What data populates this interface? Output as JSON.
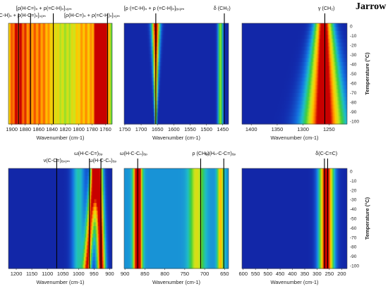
{
  "figure": {
    "title": "Jarrow",
    "temp_axis_label": "Temperature (°C)",
    "temp_ticks": [
      0,
      -10,
      -20,
      -30,
      -40,
      -50,
      -60,
      -70,
      -80,
      -90,
      -100
    ]
  },
  "chart_data": [
    {
      "type": "heatmap",
      "panel": "top-1",
      "xlabel": "Wavenumber (cm-1)",
      "xlim": [
        1905,
        1750
      ],
      "ylim": [
        0,
        -100
      ],
      "x_ticks": [
        1900,
        1880,
        1860,
        1840,
        1820,
        1800,
        1780,
        1760
      ],
      "bands": [
        {
          "center": 1765,
          "width": 10,
          "intensity": 0.85
        },
        {
          "center": 1790,
          "width": 22,
          "intensity": 0.35
        },
        {
          "center": 1860,
          "width": 40,
          "intensity": 0.42
        },
        {
          "center": 1895,
          "width": 16,
          "intensity": 0.3
        }
      ],
      "markers": [
        1890,
        1872,
        1838,
        1757
      ],
      "annotations": [
        {
          "text": "[(ρ(=C-H)ₙ + ρ(H-C=)ₙ]ₛᵧₘ",
          "x": 1892,
          "level": 2
        },
        {
          "text": "[ρ(H-C=)ₙ + ρ(=C-H)ₙ]ₛᵧₘ",
          "x": 1852,
          "level": 1
        },
        {
          "text": "[ρ(H-C=)ₙ + ρ(=C-H)ₙ]ₛᵧₘ",
          "x": 1780,
          "level": 2
        }
      ]
    },
    {
      "type": "heatmap",
      "panel": "top-2",
      "xlabel": "Wavenumber (cm-1)",
      "xlim": [
        1752,
        1432
      ],
      "ylim": [
        0,
        -100
      ],
      "x_ticks": [
        1750,
        1700,
        1650,
        1600,
        1550,
        1500,
        1450
      ],
      "bands": [
        {
          "center": 1655,
          "width": 8,
          "intensity": 1.0,
          "taper": true
        },
        {
          "center": 1457,
          "width": 8,
          "intensity": 0.55
        }
      ],
      "markers": [
        1655,
        1445
      ],
      "annotations": [
        {
          "text": "[ρ (=C-H)ₙ + ρ (=C-H)ₙ]ₐₛᵧₘ",
          "x": 1660,
          "level": 1
        },
        {
          "text": "δ (CH₂)",
          "x": 1452,
          "level": 1
        }
      ]
    },
    {
      "type": "heatmap",
      "panel": "top-3",
      "xlabel": "Wavenumber (cm-1)",
      "xlim": [
        1418,
        1215
      ],
      "ylim": [
        0,
        -100
      ],
      "x_ticks": [
        1400,
        1350,
        1300,
        1250
      ],
      "bands": [
        {
          "center": 1260,
          "width": 25,
          "intensity": 1.0,
          "widen": true
        }
      ],
      "markers": [
        1258
      ],
      "annotations": [
        {
          "text": "γ (CH₂)",
          "x": 1255,
          "level": 1
        }
      ]
    },
    {
      "type": "heatmap",
      "panel": "bottom-1",
      "xlabel": "Wavenumber (cm-1)",
      "xlim": [
        1225,
        892
      ],
      "ylim": [
        0,
        -100
      ],
      "x_ticks": [
        1200,
        1150,
        1100,
        1050,
        1000,
        950,
        900
      ],
      "bands": [
        {
          "center": 940,
          "width": 26,
          "intensity": 1.0,
          "split": true
        },
        {
          "center": 1000,
          "width": 22,
          "intensity": 0.35
        }
      ],
      "markers": [
        1070,
        965,
        928
      ],
      "annotations": [
        {
          "text": "ν(C-C=)ₐₛᵧₘ",
          "x": 1070,
          "level": 2
        },
        {
          "text": "ω(H-C-C=)ₒₚ",
          "x": 968,
          "level": 1
        },
        {
          "text": "ω(H-C-Cₙ)ₒₚ",
          "x": 922,
          "level": 2
        }
      ]
    },
    {
      "type": "heatmap",
      "panel": "bottom-2",
      "xlabel": "Wavenumber (cm-1)",
      "xlim": [
        902,
        640
      ],
      "ylim": [
        0,
        -100
      ],
      "x_ticks": [
        900,
        850,
        800,
        750,
        700,
        650
      ],
      "bands": [
        {
          "center": 868,
          "width": 10,
          "intensity": 1.0
        },
        {
          "center": 720,
          "width": 18,
          "intensity": 0.4
        },
        {
          "center": 660,
          "width": 8,
          "intensity": 0.5
        }
      ],
      "markers": [
        868,
        710,
        652
      ],
      "annotations": [
        {
          "text": "ω(H-C-Cₙ)ₒₚ",
          "x": 878,
          "level": 1
        },
        {
          "text": "ρ (CH₂)",
          "x": 710,
          "level": 1
        },
        {
          "text": "ω(Hₙ-C-C=)ₒₚ",
          "x": 660,
          "level": 1
        }
      ]
    },
    {
      "type": "heatmap",
      "panel": "bottom-3",
      "xlabel": "Wavenumber (cm-1)",
      "xlim": [
        605,
        178
      ],
      "ylim": [
        0,
        -100
      ],
      "x_ticks": [
        600,
        550,
        500,
        450,
        400,
        350,
        300,
        250,
        200
      ],
      "bands": [
        {
          "center": 262,
          "width": 30,
          "intensity": 1.0
        }
      ],
      "markers": [
        270,
        257
      ],
      "annotations": [
        {
          "text": "δ(C-C=C)",
          "x": 262,
          "level": 1
        }
      ]
    }
  ]
}
